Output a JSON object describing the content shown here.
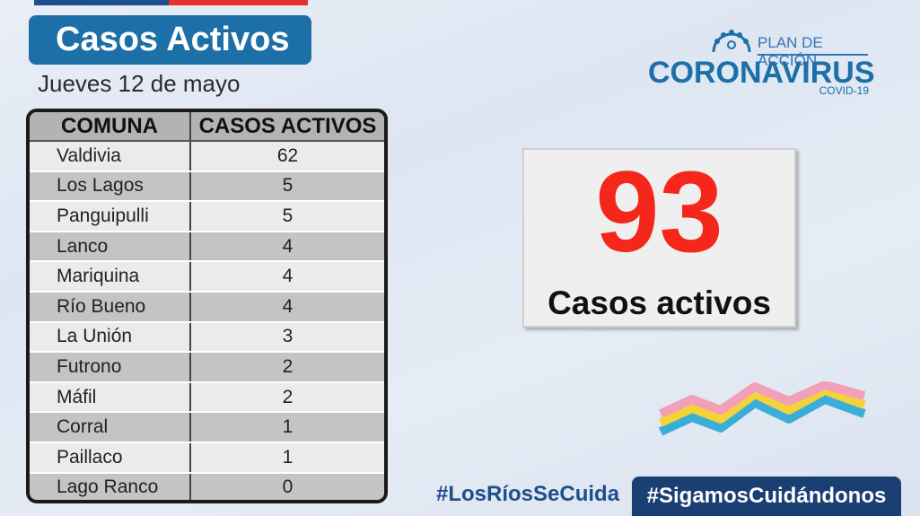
{
  "header": {
    "title": "Casos Activos",
    "date": "Jueves 12 de mayo"
  },
  "logo": {
    "plan": "PLAN DE ACCIÓN",
    "name": "CORONAVIRUS",
    "sub": "COVID-19"
  },
  "table": {
    "headers": [
      "COMUNA",
      "CASOS ACTIVOS"
    ],
    "rows": [
      {
        "comuna": "Valdivia",
        "casos": "62"
      },
      {
        "comuna": "Los Lagos",
        "casos": "5"
      },
      {
        "comuna": "Panguipulli",
        "casos": "5"
      },
      {
        "comuna": "Lanco",
        "casos": "4"
      },
      {
        "comuna": "Mariquina",
        "casos": "4"
      },
      {
        "comuna": "Río Bueno",
        "casos": "4"
      },
      {
        "comuna": "La Unión",
        "casos": "3"
      },
      {
        "comuna": "Futrono",
        "casos": "2"
      },
      {
        "comuna": "Máfil",
        "casos": "2"
      },
      {
        "comuna": "Corral",
        "casos": "1"
      },
      {
        "comuna": "Paillaco",
        "casos": "1"
      },
      {
        "comuna": "Lago Ranco",
        "casos": "0"
      }
    ]
  },
  "total": {
    "value": "93",
    "label": "Casos activos"
  },
  "footer": {
    "hashtag1": "#LosRíosSeCuida",
    "hashtag2": "#SigamosCuidándonos"
  },
  "colors": {
    "title_bg": "#1d6fa8",
    "big_number": "#f5261a",
    "hashtag_bg": "#1a3f72",
    "stripe_blue": "#1d4f91",
    "stripe_red": "#e5322d"
  }
}
